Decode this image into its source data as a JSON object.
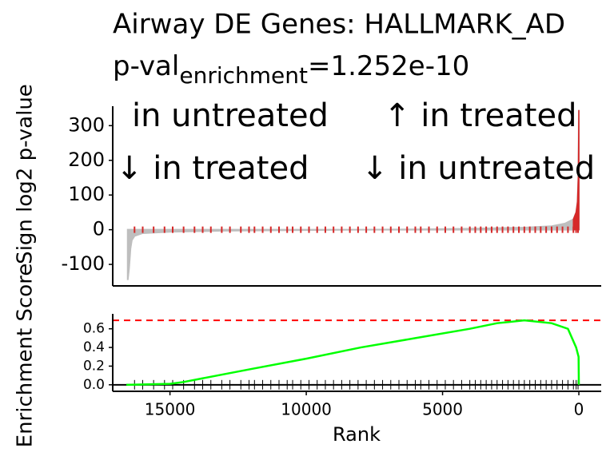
{
  "chart_data": [
    {
      "type": "area",
      "title": "Airway DE Genes: HALLMARK_AD",
      "subtitle_main": "p-val",
      "subtitle_sub": "enrichment",
      "subtitle_rest": "=1.252e-10",
      "y_label": "Sign log2 p-value",
      "annotations": [
        "in untreated",
        "↑ in treated",
        "↓ in treated",
        "↓ in untreated"
      ],
      "x": [
        16550,
        16500,
        16450,
        16400,
        16300,
        16000,
        15000,
        13000,
        10000,
        8000,
        6000,
        4000,
        2000,
        1000,
        500,
        200,
        100,
        50,
        20,
        10,
        0
      ],
      "series": [
        {
          "values": [
            -145,
            -110,
            -55,
            -30,
            -18,
            -10,
            -6,
            -3,
            -1,
            0,
            1,
            3,
            6,
            10,
            18,
            30,
            50,
            80,
            150,
            240,
            345
          ],
          "color": "#bebebe"
        }
      ],
      "hit_color": "#d62828",
      "xlim": [
        17100,
        -820
      ],
      "ylim": [
        -162,
        356
      ],
      "xticks": [
        15000,
        10000,
        5000,
        0
      ],
      "yticks": [
        300,
        200,
        100,
        0,
        -100
      ]
    },
    {
      "type": "line",
      "y_label": "Enrichment Score",
      "x_label": "Rank",
      "x": [
        16600,
        15000,
        14500,
        12000,
        10000,
        8000,
        6000,
        4000,
        3000,
        2000,
        1000,
        400,
        100,
        10,
        0
      ],
      "series": [
        {
          "values": [
            0,
            0.01,
            0.03,
            0.17,
            0.28,
            0.4,
            0.5,
            0.6,
            0.66,
            0.69,
            0.66,
            0.6,
            0.4,
            0.3,
            0
          ],
          "color": "#00ff00"
        }
      ],
      "es_max": 0.69,
      "es_color": "#ff0000",
      "hits": [
        16300,
        16000,
        15600,
        15200,
        14900,
        14500,
        14100,
        13800,
        13500,
        13100,
        12800,
        12400,
        12100,
        11900,
        11600,
        11300,
        11000,
        10700,
        10500,
        10200,
        9900,
        9600,
        9300,
        9000,
        8700,
        8400,
        8100,
        7800,
        7500,
        7200,
        6900,
        6600,
        6300,
        6000,
        5800,
        5500,
        5200,
        4900,
        4600,
        4300,
        4000,
        3800,
        3600,
        3400,
        3200,
        3000,
        2800,
        2600,
        2400,
        2200,
        2000,
        1800,
        1600,
        1400,
        1200,
        1000,
        800,
        600,
        400,
        200,
        100,
        30
      ],
      "xlim": [
        17100,
        -820
      ],
      "ylim": [
        -0.07,
        0.76
      ],
      "xticks": [
        15000,
        10000,
        5000,
        0
      ],
      "yticks": [
        {
          "value": 0,
          "label": "0.0"
        },
        0.2,
        0.4,
        0.6
      ]
    }
  ]
}
